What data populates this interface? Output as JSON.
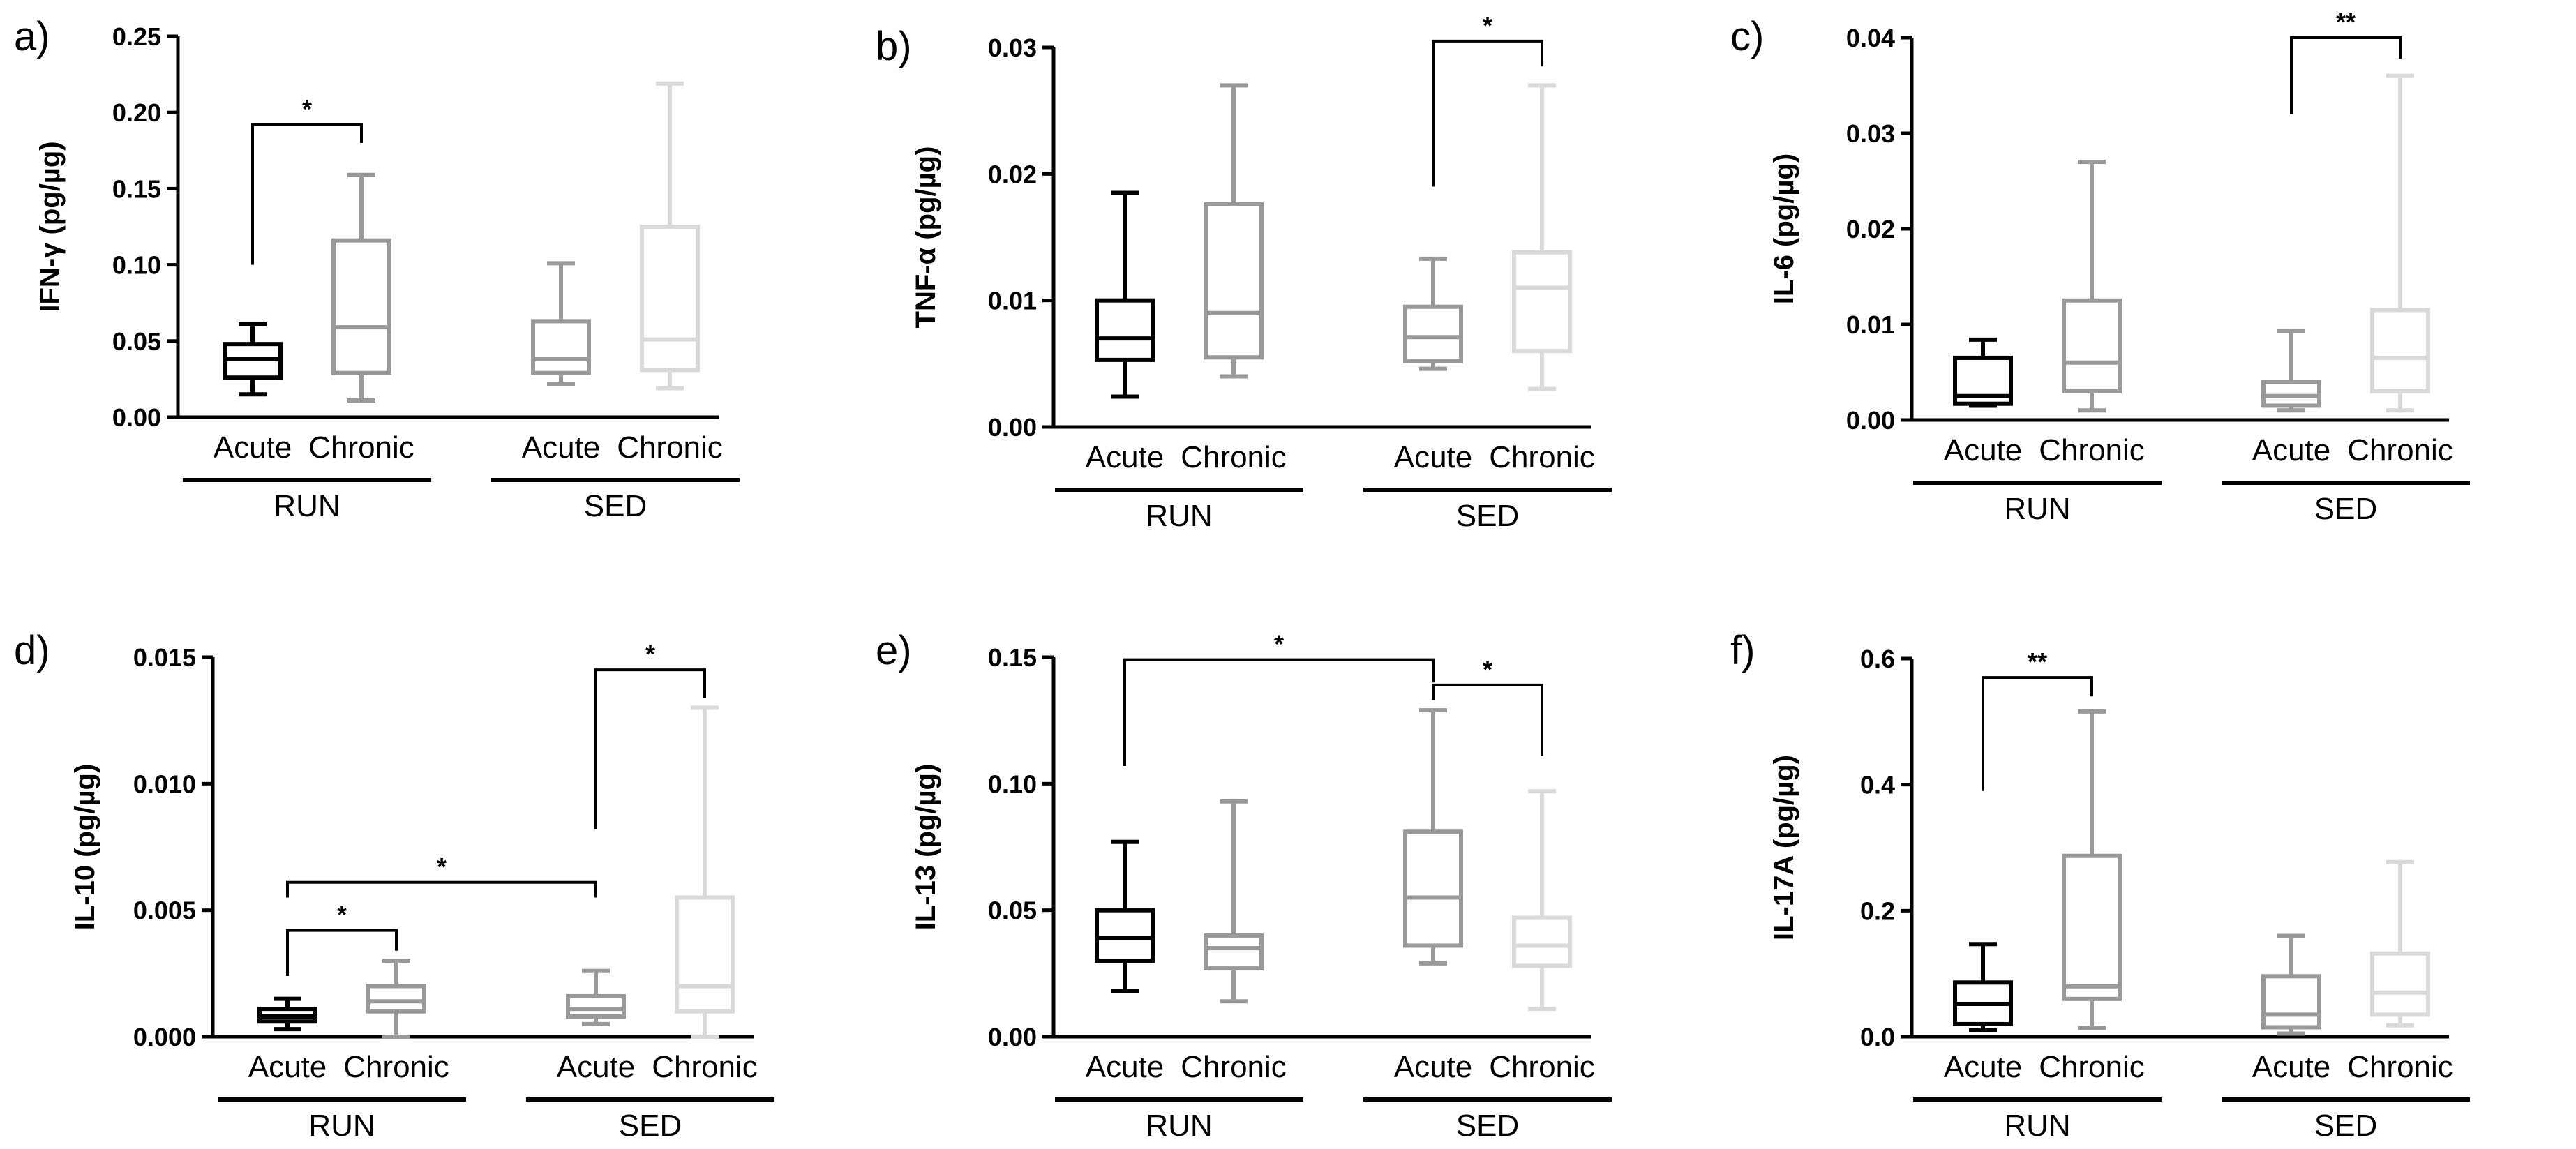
{
  "chart_data": [
    {
      "type": "box",
      "panel_label": "a)",
      "ylabel": "IFN-γ (pg/µg)",
      "ylim": [
        0,
        0.25
      ],
      "yticks": [
        "0.00",
        "0.05",
        "0.10",
        "0.15",
        "0.20",
        "0.25"
      ],
      "categories": [
        "Acute",
        "Chronic",
        "Acute",
        "Chronic"
      ],
      "groups": [
        "RUN",
        "SED"
      ],
      "series": [
        {
          "name": "RUN Acute",
          "group": "RUN",
          "color": "#000000",
          "min": 0.015,
          "q1": 0.026,
          "median": 0.038,
          "q3": 0.048,
          "max": 0.061
        },
        {
          "name": "RUN Chronic",
          "group": "RUN",
          "color": "#999999",
          "min": 0.011,
          "q1": 0.029,
          "median": 0.059,
          "q3": 0.116,
          "max": 0.159
        },
        {
          "name": "SED Acute",
          "group": "SED",
          "color": "#999999",
          "min": 0.022,
          "q1": 0.029,
          "median": 0.038,
          "q3": 0.063,
          "max": 0.101
        },
        {
          "name": "SED Chronic",
          "group": "SED",
          "color": "#d9d9d9",
          "min": 0.019,
          "q1": 0.031,
          "median": 0.051,
          "q3": 0.125,
          "max": 0.219
        }
      ],
      "significance": [
        {
          "from": 0,
          "to": 1,
          "label": "*",
          "y": 0.192,
          "left_tip": 0.1,
          "right_tip": 0.18
        }
      ]
    },
    {
      "type": "box",
      "panel_label": "b)",
      "ylabel": "TNF-α (pg/µg)",
      "ylim": [
        0,
        0.03
      ],
      "yticks": [
        "0.00",
        "0.01",
        "0.02",
        "0.03"
      ],
      "categories": [
        "Acute",
        "Chronic",
        "Acute",
        "Chronic"
      ],
      "groups": [
        "RUN",
        "SED"
      ],
      "series": [
        {
          "name": "RUN Acute",
          "group": "RUN",
          "color": "#000000",
          "min": 0.0024,
          "q1": 0.0053,
          "median": 0.007,
          "q3": 0.01,
          "max": 0.0185
        },
        {
          "name": "RUN Chronic",
          "group": "RUN",
          "color": "#999999",
          "min": 0.004,
          "q1": 0.0055,
          "median": 0.009,
          "q3": 0.0176,
          "max": 0.027
        },
        {
          "name": "SED Acute",
          "group": "SED",
          "color": "#999999",
          "min": 0.0046,
          "q1": 0.0052,
          "median": 0.0071,
          "q3": 0.0095,
          "max": 0.0133
        },
        {
          "name": "SED Chronic",
          "group": "SED",
          "color": "#d9d9d9",
          "min": 0.003,
          "q1": 0.006,
          "median": 0.011,
          "q3": 0.0138,
          "max": 0.027
        }
      ],
      "significance": [
        {
          "from": 2,
          "to": 3,
          "label": "*",
          "y": 0.0305,
          "left_tip": 0.019,
          "right_tip": 0.0285
        }
      ]
    },
    {
      "type": "box",
      "panel_label": "c)",
      "ylabel": "IL-6 (pg/µg)",
      "ylim": [
        0,
        0.04
      ],
      "yticks": [
        "0.00",
        "0.01",
        "0.02",
        "0.03",
        "0.04"
      ],
      "categories": [
        "Acute",
        "Chronic",
        "Acute",
        "Chronic"
      ],
      "groups": [
        "RUN",
        "SED"
      ],
      "series": [
        {
          "name": "RUN Acute",
          "group": "RUN",
          "color": "#000000",
          "min": 0.0015,
          "q1": 0.0017,
          "median": 0.0025,
          "q3": 0.0065,
          "max": 0.0084
        },
        {
          "name": "RUN Chronic",
          "group": "RUN",
          "color": "#999999",
          "min": 0.001,
          "q1": 0.003,
          "median": 0.006,
          "q3": 0.0125,
          "max": 0.027
        },
        {
          "name": "SED Acute",
          "group": "SED",
          "color": "#999999",
          "min": 0.001,
          "q1": 0.0015,
          "median": 0.0025,
          "q3": 0.004,
          "max": 0.0093
        },
        {
          "name": "SED Chronic",
          "group": "SED",
          "color": "#d9d9d9",
          "min": 0.001,
          "q1": 0.003,
          "median": 0.0065,
          "q3": 0.0115,
          "max": 0.036
        }
      ],
      "significance": [
        {
          "from": 2,
          "to": 3,
          "label": "**",
          "y": 0.04,
          "left_tip": 0.032,
          "right_tip": 0.0378
        }
      ]
    },
    {
      "type": "box",
      "panel_label": "d)",
      "ylabel": "IL-10 (pg/µg)",
      "ylim": [
        0,
        0.015
      ],
      "yticks": [
        "0.000",
        "0.005",
        "0.010",
        "0.015"
      ],
      "categories": [
        "Acute",
        "Chronic",
        "Acute",
        "Chronic"
      ],
      "groups": [
        "RUN",
        "SED"
      ],
      "series": [
        {
          "name": "RUN Acute",
          "group": "RUN",
          "color": "#000000",
          "min": 0.0003,
          "q1": 0.0006,
          "median": 0.0008,
          "q3": 0.0011,
          "max": 0.0015
        },
        {
          "name": "RUN Chronic",
          "group": "RUN",
          "color": "#999999",
          "min": 0.0,
          "q1": 0.001,
          "median": 0.0014,
          "q3": 0.002,
          "max": 0.003
        },
        {
          "name": "SED Acute",
          "group": "SED",
          "color": "#999999",
          "min": 0.0005,
          "q1": 0.0008,
          "median": 0.0011,
          "q3": 0.0016,
          "max": 0.0026
        },
        {
          "name": "SED Chronic",
          "group": "SED",
          "color": "#d9d9d9",
          "min": 0.0,
          "q1": 0.001,
          "median": 0.002,
          "q3": 0.0055,
          "max": 0.013
        }
      ],
      "significance": [
        {
          "from": 2,
          "to": 3,
          "label": "*",
          "y": 0.0145,
          "left_tip": 0.0082,
          "right_tip": 0.0134
        },
        {
          "from": 0,
          "to": 2,
          "label": "*",
          "y": 0.0061,
          "left_tip": 0.0055,
          "right_tip": 0.0055
        },
        {
          "from": 0,
          "to": 1,
          "label": "*",
          "y": 0.0042,
          "left_tip": 0.0024,
          "right_tip": 0.0034
        }
      ]
    },
    {
      "type": "box",
      "panel_label": "e)",
      "ylabel": "IL-13 (pg/µg)",
      "ylim": [
        0,
        0.15
      ],
      "yticks": [
        "0.00",
        "0.05",
        "0.10",
        "0.15"
      ],
      "categories": [
        "Acute",
        "Chronic",
        "Acute",
        "Chronic"
      ],
      "groups": [
        "RUN",
        "SED"
      ],
      "series": [
        {
          "name": "RUN Acute",
          "group": "RUN",
          "color": "#000000",
          "min": 0.018,
          "q1": 0.03,
          "median": 0.039,
          "q3": 0.05,
          "max": 0.077
        },
        {
          "name": "RUN Chronic",
          "group": "RUN",
          "color": "#999999",
          "min": 0.014,
          "q1": 0.027,
          "median": 0.035,
          "q3": 0.04,
          "max": 0.093
        },
        {
          "name": "SED Acute",
          "group": "SED",
          "color": "#999999",
          "min": 0.029,
          "q1": 0.036,
          "median": 0.055,
          "q3": 0.081,
          "max": 0.129
        },
        {
          "name": "SED Chronic",
          "group": "SED",
          "color": "#d9d9d9",
          "min": 0.011,
          "q1": 0.028,
          "median": 0.036,
          "q3": 0.047,
          "max": 0.097
        }
      ],
      "significance": [
        {
          "from": 0,
          "to": 2,
          "label": "*",
          "y": 0.149,
          "left_tip": 0.107,
          "right_tip": 0.14
        },
        {
          "from": 2,
          "to": 3,
          "label": "*",
          "y": 0.139,
          "left_tip": 0.133,
          "right_tip": 0.111
        }
      ]
    },
    {
      "type": "box",
      "panel_label": "f)",
      "ylabel": "IL-17A (pg/µg)",
      "ylim": [
        0,
        0.6
      ],
      "yticks": [
        "0.0",
        "0.2",
        "0.4",
        "0.6"
      ],
      "categories": [
        "Acute",
        "Chronic",
        "Acute",
        "Chronic"
      ],
      "groups": [
        "RUN",
        "SED"
      ],
      "series": [
        {
          "name": "RUN Acute",
          "group": "RUN",
          "color": "#000000",
          "min": 0.01,
          "q1": 0.02,
          "median": 0.052,
          "q3": 0.086,
          "max": 0.147
        },
        {
          "name": "RUN Chronic",
          "group": "RUN",
          "color": "#999999",
          "min": 0.014,
          "q1": 0.06,
          "median": 0.08,
          "q3": 0.287,
          "max": 0.516
        },
        {
          "name": "SED Acute",
          "group": "SED",
          "color": "#999999",
          "min": 0.005,
          "q1": 0.015,
          "median": 0.035,
          "q3": 0.096,
          "max": 0.16
        },
        {
          "name": "SED Chronic",
          "group": "SED",
          "color": "#d9d9d9",
          "min": 0.018,
          "q1": 0.035,
          "median": 0.07,
          "q3": 0.132,
          "max": 0.277
        }
      ],
      "significance": [
        {
          "from": 0,
          "to": 1,
          "label": "**",
          "y": 0.57,
          "left_tip": 0.39,
          "right_tip": 0.54
        }
      ]
    }
  ]
}
